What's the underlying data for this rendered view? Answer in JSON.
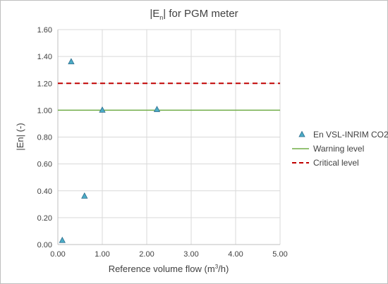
{
  "chart_data": {
    "type": "scatter",
    "title": {
      "pre": "|E",
      "sub": "n",
      "post": "| for PGM meter"
    },
    "xlabel": {
      "pre": "Reference volume flow (m",
      "sup": "3",
      "post": "/h)"
    },
    "ylabel": "|En| (-)",
    "xlim": [
      0,
      5
    ],
    "ylim": [
      0,
      1.6
    ],
    "x_ticks": [
      "0.00",
      "1.00",
      "2.00",
      "3.00",
      "4.00",
      "5.00"
    ],
    "y_ticks": [
      "0.00",
      "0.20",
      "0.40",
      "0.60",
      "0.80",
      "1.00",
      "1.20",
      "1.40",
      "1.60"
    ],
    "grid": {
      "x": true,
      "y": true
    },
    "legend_position": "right",
    "series": [
      {
        "name": "En VSL-INRIM CO2",
        "kind": "scatter",
        "marker": "triangle",
        "color": "#4BACC6",
        "points": [
          {
            "x": 0.1,
            "y": 0.03
          },
          {
            "x": 0.3,
            "y": 1.36
          },
          {
            "x": 0.6,
            "y": 0.36
          },
          {
            "x": 1.0,
            "y": 1.0
          },
          {
            "x": 2.23,
            "y": 1.005
          }
        ]
      },
      {
        "name": "Warning level",
        "kind": "hline",
        "y": 1.0,
        "color": "#70AD47",
        "dash": "solid"
      },
      {
        "name": "Critical level",
        "kind": "hline",
        "y": 1.2,
        "color": "#C00000",
        "dash": "dashed"
      }
    ]
  }
}
